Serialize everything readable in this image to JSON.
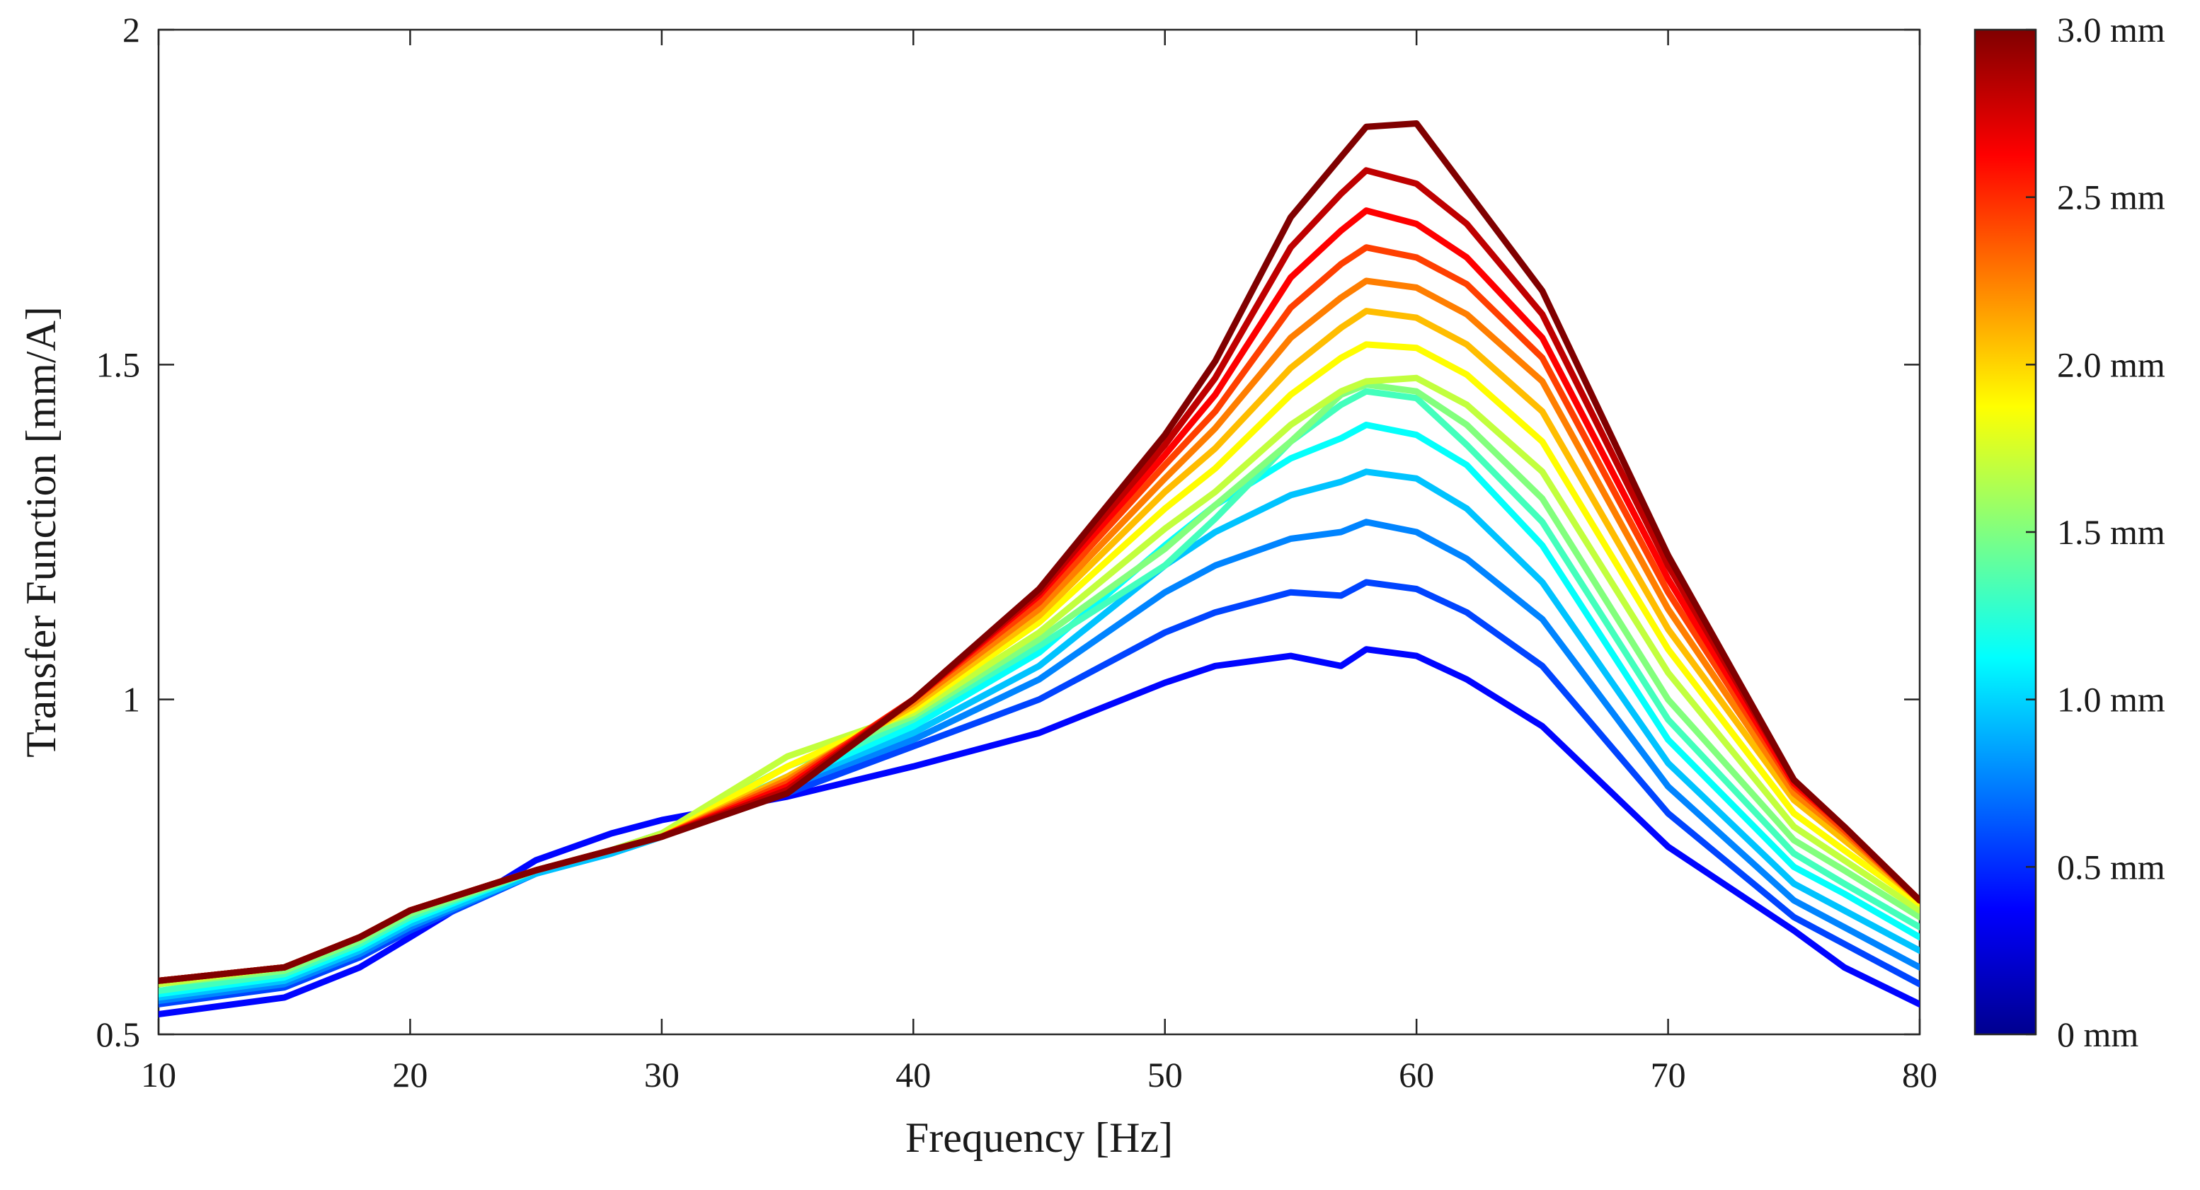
{
  "chart_data": {
    "type": "line",
    "title": "",
    "xlabel": "Frequency [Hz]",
    "ylabel": "Transfer Function [mm/A]",
    "xlim": [
      10,
      80
    ],
    "ylim": [
      0.5,
      2
    ],
    "xticks": [
      10,
      20,
      30,
      40,
      50,
      60,
      70,
      80
    ],
    "xtick_labels": [
      "10",
      "20",
      "30",
      "40",
      "50",
      "60",
      "70",
      "80"
    ],
    "yticks": [
      0.5,
      1,
      1.5,
      2
    ],
    "ytick_labels": [
      "0.5",
      "1",
      "1.5",
      "2"
    ],
    "grid": false,
    "x": [
      10,
      15,
      18,
      20,
      25,
      28,
      30,
      35,
      40,
      45,
      50,
      52,
      55,
      57,
      58,
      60,
      62,
      65,
      70,
      75,
      77,
      80
    ],
    "series": [
      {
        "name": "0.2 mm",
        "values": [
          0.53,
          0.555,
          0.6,
          0.645,
          0.76,
          0.8,
          0.82,
          0.855,
          0.9,
          0.95,
          1.025,
          1.05,
          1.065,
          1.05,
          1.075,
          1.065,
          1.03,
          0.96,
          0.78,
          0.655,
          0.6,
          0.545
        ]
      },
      {
        "name": "0.4 mm",
        "values": [
          0.545,
          0.57,
          0.615,
          0.655,
          0.74,
          0.775,
          0.8,
          0.86,
          0.93,
          1.0,
          1.1,
          1.13,
          1.16,
          1.155,
          1.175,
          1.165,
          1.13,
          1.05,
          0.83,
          0.675,
          0.635,
          0.575
        ]
      },
      {
        "name": "0.6 mm",
        "values": [
          0.55,
          0.575,
          0.62,
          0.66,
          0.74,
          0.77,
          0.795,
          0.87,
          0.94,
          1.03,
          1.16,
          1.2,
          1.24,
          1.25,
          1.265,
          1.25,
          1.21,
          1.12,
          0.87,
          0.7,
          0.66,
          0.6
        ]
      },
      {
        "name": "0.8 mm",
        "values": [
          0.555,
          0.58,
          0.625,
          0.665,
          0.74,
          0.77,
          0.795,
          0.875,
          0.95,
          1.05,
          1.2,
          1.25,
          1.305,
          1.325,
          1.34,
          1.33,
          1.285,
          1.175,
          0.905,
          0.725,
          0.685,
          0.625
        ]
      },
      {
        "name": "1.0 mm",
        "values": [
          0.56,
          0.585,
          0.63,
          0.67,
          0.745,
          0.775,
          0.8,
          0.88,
          0.96,
          1.07,
          1.23,
          1.29,
          1.36,
          1.39,
          1.41,
          1.395,
          1.35,
          1.23,
          0.94,
          0.75,
          0.71,
          0.645
        ]
      },
      {
        "name": "1.2 mm",
        "values": [
          0.565,
          0.59,
          0.635,
          0.675,
          0.745,
          0.775,
          0.8,
          0.885,
          0.97,
          1.08,
          1.2,
          1.27,
          1.385,
          1.44,
          1.46,
          1.45,
          1.38,
          1.265,
          0.97,
          0.77,
          0.725,
          0.66
        ]
      },
      {
        "name": "1.4 mm",
        "values": [
          0.575,
          0.595,
          0.64,
          0.68,
          0.745,
          0.775,
          0.8,
          0.9,
          0.975,
          1.09,
          1.225,
          1.29,
          1.385,
          1.455,
          1.47,
          1.46,
          1.41,
          1.3,
          1.0,
          0.79,
          0.745,
          0.675
        ]
      },
      {
        "name": "1.6 mm",
        "values": [
          0.575,
          0.6,
          0.645,
          0.685,
          0.745,
          0.775,
          0.8,
          0.915,
          0.98,
          1.1,
          1.255,
          1.31,
          1.41,
          1.46,
          1.475,
          1.48,
          1.44,
          1.34,
          1.04,
          0.81,
          0.76,
          0.685
        ]
      },
      {
        "name": "1.8 mm",
        "values": [
          0.58,
          0.6,
          0.645,
          0.685,
          0.745,
          0.775,
          0.795,
          0.9,
          0.985,
          1.115,
          1.285,
          1.345,
          1.455,
          1.51,
          1.53,
          1.525,
          1.485,
          1.385,
          1.075,
          0.83,
          0.775,
          0.695
        ]
      },
      {
        "name": "2.0 mm",
        "values": [
          0.58,
          0.6,
          0.645,
          0.685,
          0.745,
          0.775,
          0.795,
          0.885,
          0.99,
          1.125,
          1.31,
          1.375,
          1.495,
          1.555,
          1.58,
          1.57,
          1.53,
          1.43,
          1.105,
          0.85,
          0.79,
          0.7
        ]
      },
      {
        "name": "2.2 mm",
        "values": [
          0.58,
          0.6,
          0.645,
          0.685,
          0.745,
          0.775,
          0.795,
          0.88,
          0.995,
          1.135,
          1.33,
          1.405,
          1.54,
          1.6,
          1.625,
          1.615,
          1.575,
          1.475,
          1.135,
          0.86,
          0.8,
          0.7
        ]
      },
      {
        "name": "2.4 mm",
        "values": [
          0.58,
          0.6,
          0.645,
          0.685,
          0.745,
          0.775,
          0.795,
          0.875,
          1.0,
          1.145,
          1.35,
          1.43,
          1.585,
          1.65,
          1.675,
          1.66,
          1.62,
          1.51,
          1.16,
          0.87,
          0.805,
          0.7
        ]
      },
      {
        "name": "2.6 mm",
        "values": [
          0.58,
          0.6,
          0.645,
          0.685,
          0.745,
          0.775,
          0.795,
          0.87,
          1.0,
          1.155,
          1.365,
          1.455,
          1.63,
          1.7,
          1.73,
          1.71,
          1.66,
          1.54,
          1.18,
          0.875,
          0.81,
          0.7
        ]
      },
      {
        "name": "2.8 mm",
        "values": [
          0.58,
          0.6,
          0.645,
          0.685,
          0.745,
          0.775,
          0.795,
          0.865,
          1.0,
          1.16,
          1.38,
          1.48,
          1.675,
          1.755,
          1.79,
          1.77,
          1.71,
          1.575,
          1.2,
          0.88,
          0.81,
          0.7
        ]
      },
      {
        "name": "3.0 mm",
        "values": [
          0.58,
          0.6,
          0.645,
          0.685,
          0.745,
          0.775,
          0.795,
          0.86,
          1.0,
          1.165,
          1.395,
          1.505,
          1.72,
          1.81,
          1.855,
          1.86,
          1.76,
          1.61,
          1.215,
          0.88,
          0.81,
          0.7
        ]
      }
    ],
    "colorbar": {
      "colormap": "jet",
      "range": [
        0,
        3.0
      ],
      "ticks": [
        0,
        0.5,
        1.0,
        1.5,
        2.0,
        2.5,
        3.0
      ],
      "tick_labels": [
        "0 mm",
        "0.5 mm",
        "1.0 mm",
        "1.5 mm",
        "2.0 mm",
        "2.5 mm",
        "3.0 mm"
      ]
    }
  }
}
